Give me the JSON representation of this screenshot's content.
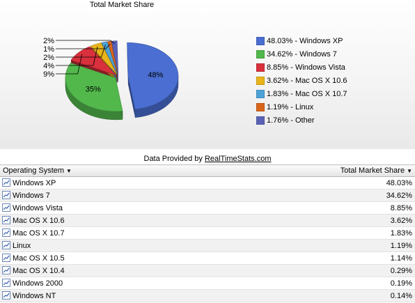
{
  "chart_data": {
    "type": "pie",
    "title": "Total Market Share",
    "slices": [
      {
        "name": "Windows XP",
        "value": 48.03,
        "legend": "48.03% - Windows XP",
        "label": "48%",
        "color": "#4a6ed1"
      },
      {
        "name": "Windows 7",
        "value": 34.62,
        "legend": "34.62% - Windows 7",
        "label": "35%",
        "color": "#52b84c"
      },
      {
        "name": "Windows Vista",
        "value": 8.85,
        "legend": "8.85% - Windows Vista",
        "label": "9%",
        "color": "#d8303c"
      },
      {
        "name": "Mac OS X 10.6",
        "value": 3.62,
        "legend": "3.62% - Mac OS X 10.6",
        "label": "4%",
        "color": "#e8b41a"
      },
      {
        "name": "Mac OS X 10.7",
        "value": 1.83,
        "legend": "1.83% - Mac OS X 10.7",
        "label": "2%",
        "color": "#4da3d8"
      },
      {
        "name": "Linux",
        "value": 1.19,
        "legend": "1.19% - Linux",
        "label": "1%",
        "color": "#d9661a"
      },
      {
        "name": "Other",
        "value": 1.76,
        "legend": "1.76% - Other",
        "label": "2%",
        "color": "#5a62b8"
      }
    ]
  },
  "provider": {
    "prefix": "Data Provided by ",
    "link": "RealTimeStats.com"
  },
  "table": {
    "headers": {
      "os": "Operating System",
      "share": "Total Market Share"
    },
    "rows": [
      {
        "os": "Windows XP",
        "share": "48.03%"
      },
      {
        "os": "Windows 7",
        "share": "34.62%"
      },
      {
        "os": "Windows Vista",
        "share": "8.85%"
      },
      {
        "os": "Mac OS X 10.6",
        "share": "3.62%"
      },
      {
        "os": "Mac OS X 10.7",
        "share": "1.83%"
      },
      {
        "os": "Linux",
        "share": "1.19%"
      },
      {
        "os": "Mac OS X 10.5",
        "share": "1.14%"
      },
      {
        "os": "Mac OS X 10.4",
        "share": "0.29%"
      },
      {
        "os": "Windows 2000",
        "share": "0.19%"
      },
      {
        "os": "Windows NT",
        "share": "0.14%"
      }
    ]
  }
}
